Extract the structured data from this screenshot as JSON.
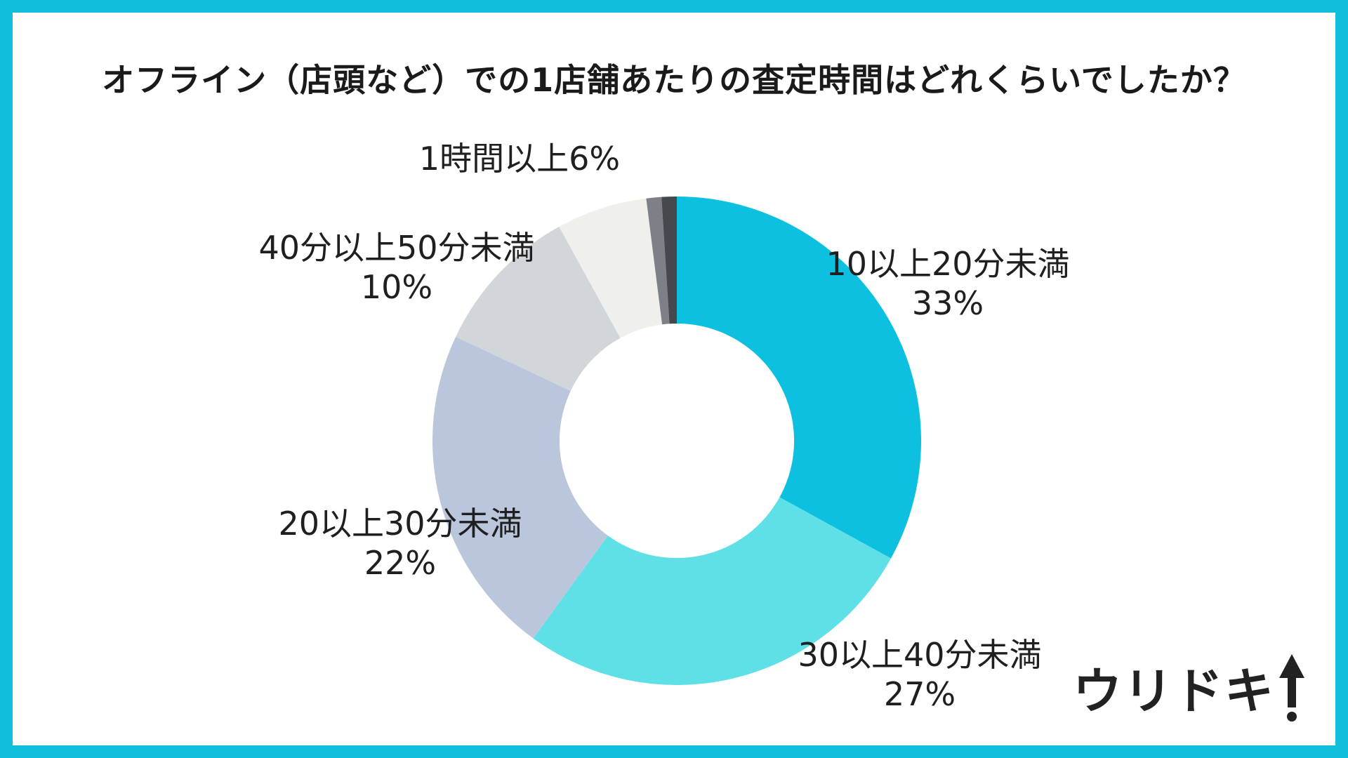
{
  "chart_data": {
    "type": "pie",
    "title": "オフライン（店頭など）での1店舗あたりの査定時間はどれくらいでしたか？",
    "categories": [
      "10以上20分未満",
      "30以上40分未満",
      "20以上30分未満",
      "40分以上50分未満",
      "1時間以上",
      "",
      ""
    ],
    "values": [
      33,
      27,
      22,
      10,
      6,
      1,
      1
    ],
    "labels_pct": [
      "33%",
      "27%",
      "22%",
      "10%",
      "6%"
    ],
    "colors": [
      "#0ec0e0",
      "#5fe0e6",
      "#b9c6dc",
      "#d1d6da",
      "#efefec",
      "#7d8087",
      "#45484d"
    ],
    "hole_ratio": 0.48
  },
  "brand": {
    "logo_text": "ウリドキ"
  }
}
